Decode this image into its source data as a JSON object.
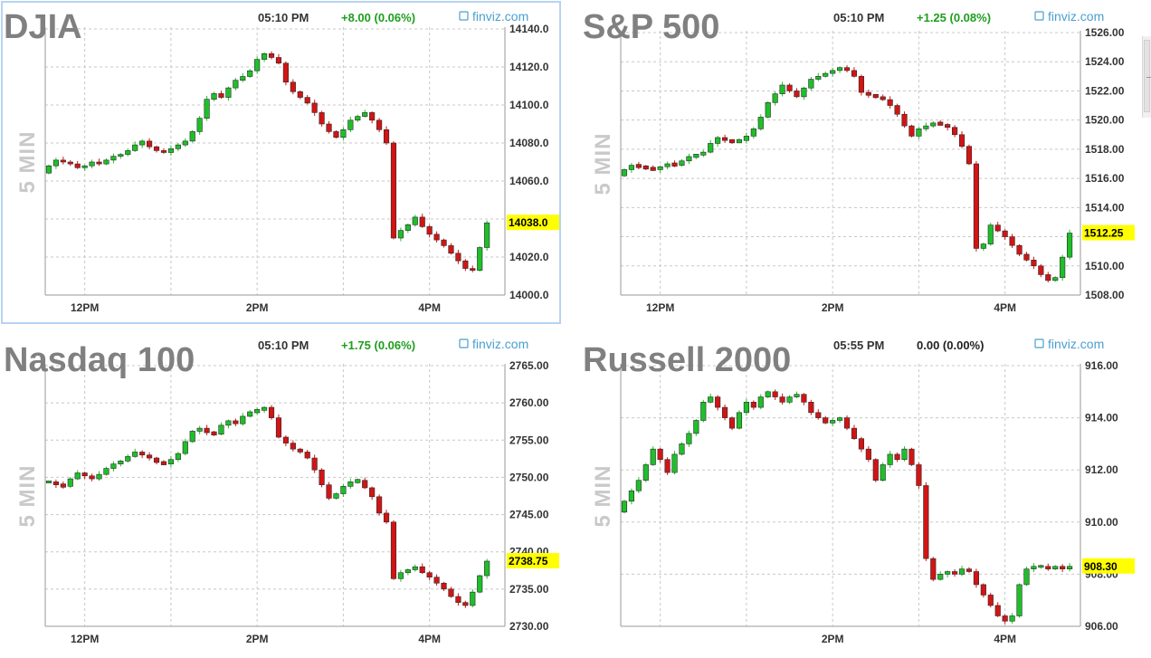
{
  "colors": {
    "up": "#1fbf2a",
    "down": "#d21414",
    "grid": "#c8c8c8",
    "axis": "#333333",
    "title": "#808080",
    "watermark": "#c9c9c9",
    "change_pos": "#1e9e1e",
    "change_flat": "#222222",
    "brand": "#4a9fd0",
    "price_tag": "#ffff00"
  },
  "brand_label": "finviz.com",
  "watermark": "5 MIN",
  "chart_data": [
    {
      "type": "candlestick",
      "title": "DJIA",
      "time": "05:10 PM",
      "change": "+8.00 (0.06%)",
      "direction": "up",
      "y_ticks": [
        "14140.0",
        "14120.0",
        "14100.0",
        "14080.0",
        "14060.0",
        "14040.0",
        "14020.0",
        "14000.0"
      ],
      "y_tick_values": [
        14140,
        14120,
        14100,
        14080,
        14060,
        14040,
        14020,
        14000
      ],
      "ylim": [
        14000,
        14140
      ],
      "last_price": "14038.0",
      "last_value": 14038,
      "x_ticks": [
        "12PM",
        "2PM",
        "4PM"
      ],
      "x_tick_index": [
        5,
        29,
        53
      ],
      "x_grid_index": [
        5,
        17,
        29,
        41,
        53
      ],
      "n_slots": 64,
      "close": [
        14068,
        14071,
        14070,
        14069,
        14067,
        14068,
        14070,
        14069,
        14071,
        14073,
        14074,
        14076,
        14079,
        14081,
        14078,
        14076,
        14075,
        14077,
        14079,
        14081,
        14086,
        14093,
        14103,
        14106,
        14104,
        14109,
        14113,
        14115,
        14118,
        14124,
        14127,
        14125,
        14122,
        14112,
        14107,
        14104,
        14101,
        14096,
        14090,
        14086,
        14083,
        14087,
        14092,
        14094,
        14096,
        14092,
        14087,
        14080,
        14030,
        14034,
        14037,
        14041,
        14036,
        14032,
        14029,
        14026,
        14022,
        14018,
        14014,
        14013,
        14025,
        14038
      ]
    },
    {
      "type": "candlestick",
      "title": "S&P 500",
      "time": "05:10 PM",
      "change": "+1.25 (0.08%)",
      "direction": "up",
      "y_ticks": [
        "1526.00",
        "1524.00",
        "1522.00",
        "1520.00",
        "1518.00",
        "1516.00",
        "1514.00",
        "1512.00",
        "1510.00",
        "1508.00"
      ],
      "y_tick_values": [
        1526,
        1524,
        1522,
        1520,
        1518,
        1516,
        1514,
        1512,
        1510,
        1508
      ],
      "ylim": [
        1508,
        1526
      ],
      "last_price": "1512.25",
      "last_value": 1512.25,
      "x_ticks": [
        "12PM",
        "2PM",
        "4PM"
      ],
      "x_tick_index": [
        5,
        29,
        53
      ],
      "x_grid_index": [
        5,
        17,
        29,
        41,
        53
      ],
      "n_slots": 64,
      "close": [
        1516.6,
        1516.9,
        1516.8,
        1516.7,
        1516.6,
        1516.8,
        1517.0,
        1516.9,
        1517.2,
        1517.5,
        1517.6,
        1517.8,
        1518.4,
        1518.8,
        1518.6,
        1518.5,
        1518.6,
        1518.9,
        1519.4,
        1520.2,
        1521.2,
        1521.8,
        1522.4,
        1522.0,
        1521.6,
        1522.2,
        1522.8,
        1523.0,
        1523.2,
        1523.4,
        1523.6,
        1523.4,
        1523.0,
        1521.9,
        1521.7,
        1521.6,
        1521.4,
        1521.0,
        1520.4,
        1519.6,
        1518.9,
        1519.4,
        1519.6,
        1519.8,
        1519.7,
        1519.5,
        1519.0,
        1518.2,
        1517.0,
        1511.2,
        1511.5,
        1512.8,
        1512.4,
        1512.0,
        1511.4,
        1510.8,
        1510.4,
        1510.0,
        1509.4,
        1509.0,
        1509.2,
        1510.6,
        1512.25
      ]
    },
    {
      "type": "candlestick",
      "title": "Nasdaq 100",
      "time": "05:10 PM",
      "change": "+1.75 (0.06%)",
      "direction": "up",
      "y_ticks": [
        "2765.00",
        "2760.00",
        "2755.00",
        "2750.00",
        "2745.00",
        "2740.00",
        "2735.00",
        "2730.00"
      ],
      "y_tick_values": [
        2765,
        2760,
        2755,
        2750,
        2745,
        2740,
        2735,
        2730
      ],
      "ylim": [
        2730,
        2765
      ],
      "last_price": "2738.75",
      "last_value": 2738.75,
      "x_ticks": [
        "12PM",
        "2PM",
        "4PM"
      ],
      "x_tick_index": [
        5,
        29,
        53
      ],
      "x_grid_index": [
        5,
        17,
        29,
        41,
        53
      ],
      "n_slots": 64,
      "close": [
        2749.4,
        2749.0,
        2748.8,
        2749.8,
        2750.6,
        2750.2,
        2749.8,
        2750.4,
        2751.2,
        2751.8,
        2752.2,
        2752.8,
        2753.4,
        2753.0,
        2752.6,
        2752.0,
        2751.8,
        2752.4,
        2753.2,
        2754.8,
        2756.2,
        2756.6,
        2756.0,
        2755.8,
        2757.0,
        2757.6,
        2757.2,
        2758.2,
        2758.8,
        2759.0,
        2759.4,
        2758.0,
        2755.4,
        2754.6,
        2753.8,
        2753.4,
        2752.6,
        2751.0,
        2749.0,
        2747.2,
        2747.8,
        2748.8,
        2749.4,
        2749.6,
        2748.6,
        2747.4,
        2745.2,
        2744.0,
        2736.4,
        2737.2,
        2737.6,
        2738.0,
        2737.2,
        2736.6,
        2735.8,
        2735.0,
        2734.0,
        2733.2,
        2732.8,
        2734.6,
        2736.8,
        2738.75
      ]
    },
    {
      "type": "candlestick",
      "title": "Russell 2000",
      "time": "05:55 PM",
      "change": "0.00 (0.00%)",
      "direction": "flat",
      "y_ticks": [
        "916.00",
        "914.00",
        "912.00",
        "910.00",
        "908.00",
        "906.00"
      ],
      "y_tick_values": [
        916,
        914,
        912,
        910,
        908,
        906
      ],
      "ylim": [
        906,
        916
      ],
      "last_price": "908.30",
      "last_value": 908.3,
      "x_ticks": [
        "2PM",
        "4PM"
      ],
      "x_tick_index": [
        29,
        53
      ],
      "x_grid_index": [
        5,
        17,
        29,
        41,
        53
      ],
      "n_slots": 64,
      "close": [
        910.8,
        911.2,
        911.6,
        912.2,
        912.8,
        912.4,
        911.9,
        912.6,
        913.0,
        913.4,
        913.9,
        914.6,
        914.8,
        914.4,
        914.0,
        913.6,
        914.2,
        914.6,
        914.4,
        914.8,
        915.0,
        914.8,
        914.6,
        914.8,
        914.9,
        914.6,
        914.2,
        914.0,
        913.8,
        913.9,
        914.0,
        913.6,
        913.2,
        912.8,
        912.4,
        911.6,
        912.2,
        912.6,
        912.4,
        912.8,
        912.2,
        911.4,
        908.6,
        907.8,
        908.0,
        908.1,
        908.0,
        908.2,
        908.1,
        907.6,
        907.2,
        906.8,
        906.4,
        906.2,
        906.4,
        907.6,
        908.2,
        908.3,
        908.3,
        908.2,
        908.3,
        908.2,
        908.3
      ]
    }
  ]
}
